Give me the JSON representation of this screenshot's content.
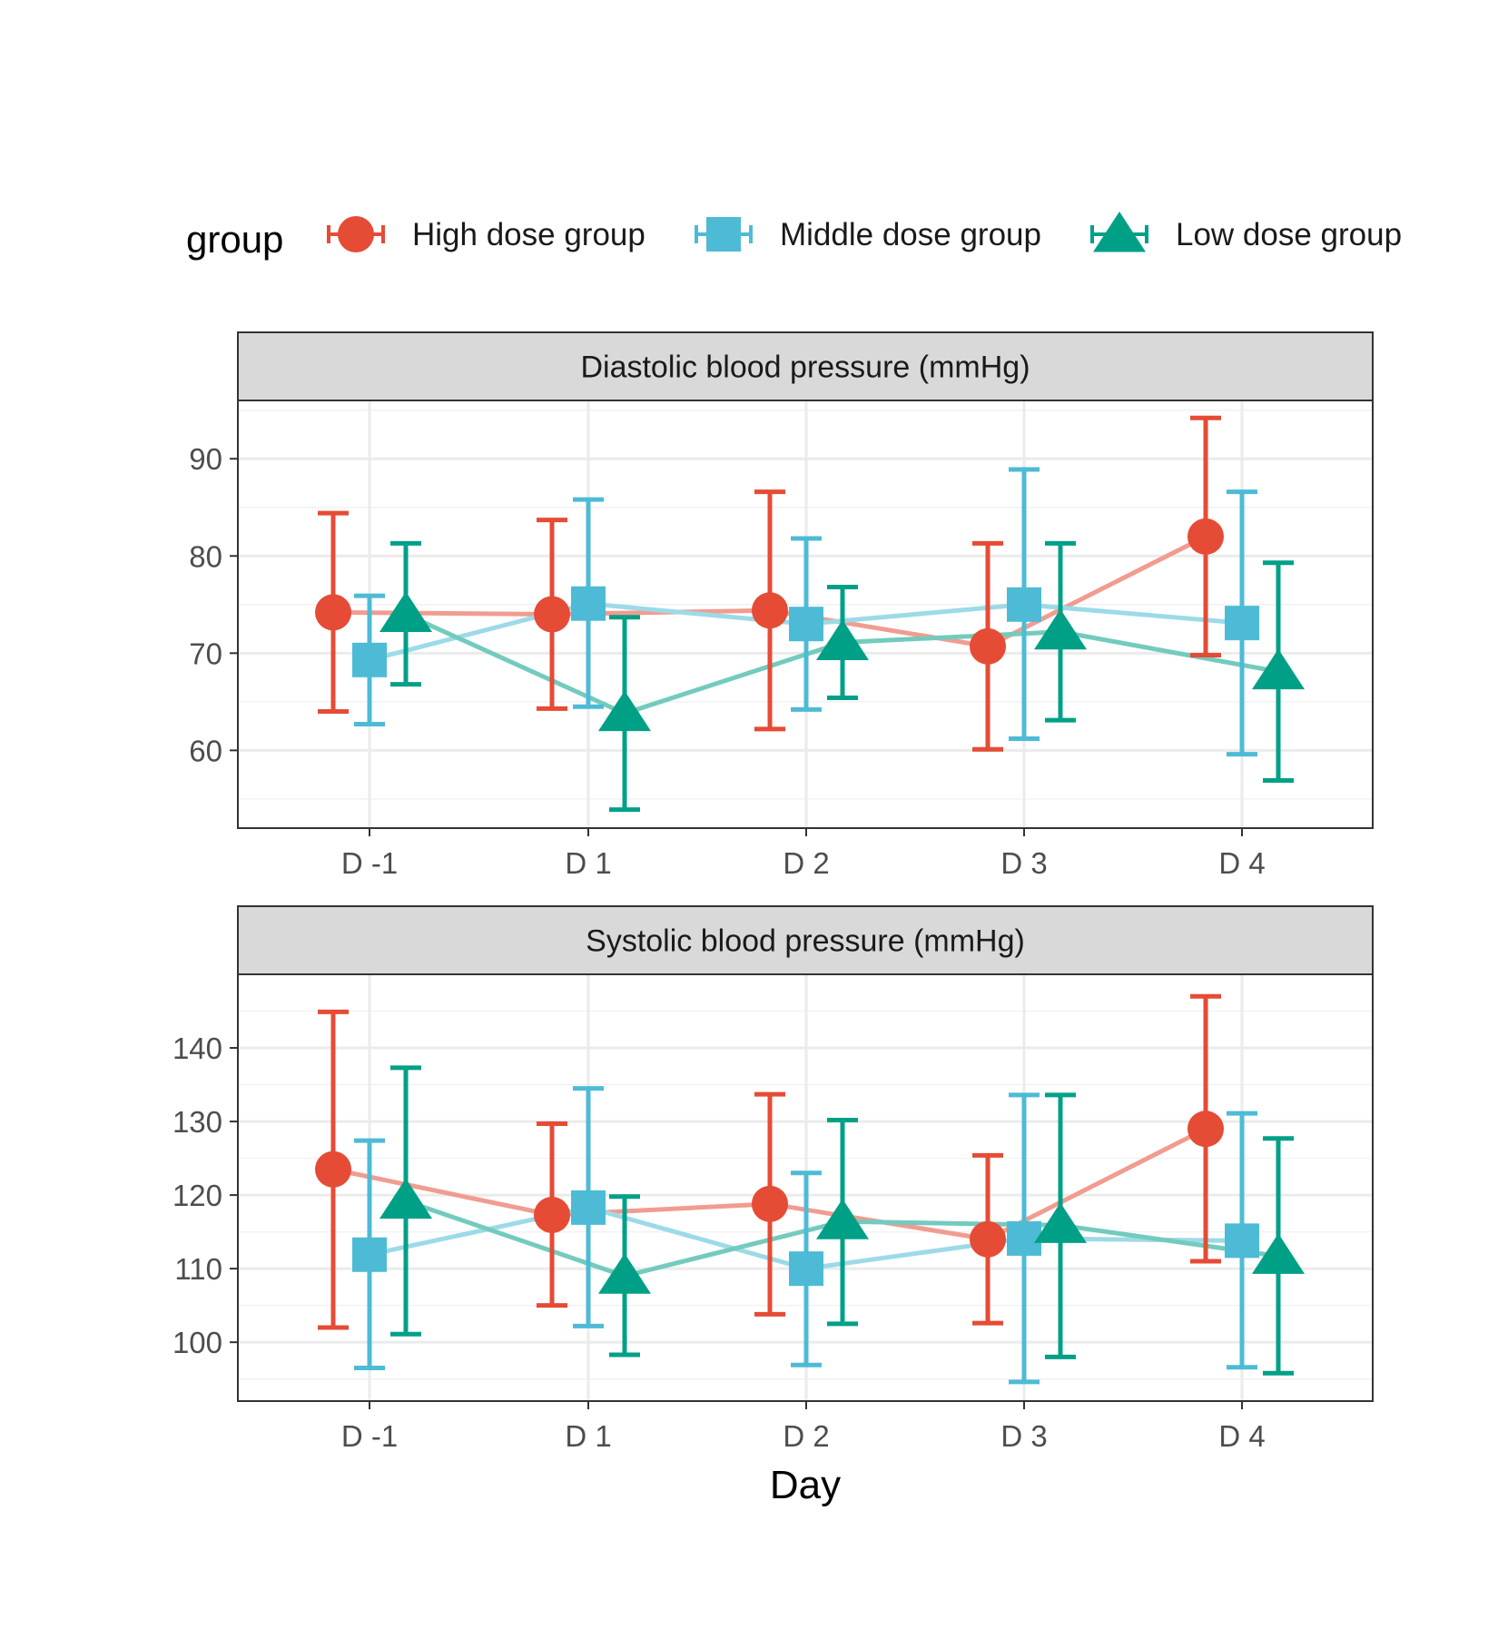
{
  "chart_data": {
    "type": "line",
    "xlabel": "Day",
    "legend": {
      "title": "group",
      "position": "top",
      "entries": [
        {
          "name": "High dose group",
          "shape": "circle",
          "color": "#E64B35"
        },
        {
          "name": "Middle dose group",
          "shape": "square",
          "color": "#4DBBD5"
        },
        {
          "name": "Low dose group",
          "shape": "triangle",
          "color": "#00A087"
        }
      ]
    },
    "categories": [
      "D -1",
      "D 1",
      "D 2",
      "D 3",
      "D 4"
    ],
    "grid": true,
    "error_bars": true,
    "panels": [
      {
        "title": "Diastolic blood pressure (mmHg)",
        "ylim": [
          52,
          96
        ],
        "yticks": [
          60,
          70,
          80,
          90
        ],
        "series": [
          {
            "name": "High dose group",
            "mean": [
              74.2,
              74.0,
              74.4,
              70.7,
              82.0
            ],
            "lower": [
              64.0,
              64.3,
              62.2,
              60.1,
              69.8
            ],
            "upper": [
              84.4,
              83.7,
              86.6,
              81.3,
              94.2
            ]
          },
          {
            "name": "Middle dose group",
            "mean": [
              69.3,
              75.1,
              73.0,
              75.0,
              73.1
            ],
            "lower": [
              62.7,
              64.5,
              64.2,
              61.2,
              59.6
            ],
            "upper": [
              75.9,
              85.8,
              81.8,
              88.9,
              86.6
            ]
          },
          {
            "name": "Low dose group",
            "mean": [
              74.0,
              63.8,
              71.1,
              72.2,
              68.1
            ],
            "lower": [
              66.8,
              53.9,
              65.4,
              63.1,
              56.9
            ],
            "upper": [
              81.3,
              73.7,
              76.8,
              81.3,
              79.3
            ]
          }
        ]
      },
      {
        "title": "Systolic blood pressure (mmHg)",
        "ylim": [
          92,
          150
        ],
        "yticks": [
          100,
          110,
          120,
          130,
          140
        ],
        "series": [
          {
            "name": "High dose group",
            "mean": [
              123.5,
              117.3,
              118.8,
              114.0,
              129.0
            ],
            "lower": [
              102.0,
              105.0,
              103.8,
              102.6,
              111.0
            ],
            "upper": [
              144.9,
              129.7,
              133.7,
              125.4,
              147.0
            ]
          },
          {
            "name": "Middle dose group",
            "mean": [
              111.9,
              118.3,
              110.0,
              114.1,
              113.8
            ],
            "lower": [
              96.5,
              102.2,
              96.9,
              94.6,
              96.6
            ],
            "upper": [
              127.4,
              134.5,
              123.0,
              133.6,
              131.1
            ]
          },
          {
            "name": "Low dose group",
            "mean": [
              119.2,
              109.0,
              116.4,
              115.9,
              111.7
            ],
            "lower": [
              101.1,
              98.3,
              102.5,
              98.0,
              95.8
            ],
            "upper": [
              137.3,
              119.8,
              130.2,
              133.6,
              127.7
            ]
          }
        ]
      }
    ]
  }
}
